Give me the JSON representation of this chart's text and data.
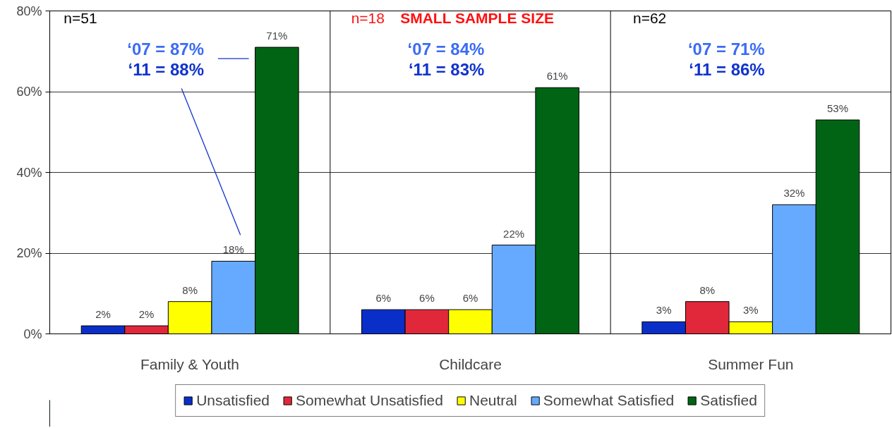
{
  "chart_data": {
    "type": "bar",
    "categories": [
      "Family & Youth",
      "Childcare",
      "Summer Fun"
    ],
    "series": [
      {
        "name": "Unsatisfied",
        "color": "#0a2fc8",
        "values": [
          2,
          6,
          3
        ]
      },
      {
        "name": "Somewhat Unsatisfied",
        "color": "#e0283a",
        "values": [
          2,
          6,
          8
        ]
      },
      {
        "name": "Neutral",
        "color": "#ffff00",
        "values": [
          8,
          6,
          3
        ]
      },
      {
        "name": "Somewhat Satisfied",
        "color": "#66aaff",
        "values": [
          18,
          22,
          32
        ]
      },
      {
        "name": "Satisfied",
        "color": "#006414",
        "values": [
          71,
          61,
          53
        ]
      }
    ],
    "value_labels": [
      [
        "2%",
        "6%",
        "3%"
      ],
      [
        "2%",
        "6%",
        "8%"
      ],
      [
        "8%",
        "6%",
        "3%"
      ],
      [
        "18%",
        "22%",
        "32%"
      ],
      [
        "71%",
        "61%",
        "53%"
      ]
    ],
    "ylim": [
      0,
      80
    ],
    "yticks": [
      {
        "value": 0,
        "label": "0%"
      },
      {
        "value": 20,
        "label": "20%"
      },
      {
        "value": 40,
        "label": "40%"
      },
      {
        "value": 60,
        "label": "60%"
      },
      {
        "value": 80,
        "label": "80%"
      }
    ],
    "grid": "y",
    "legend": "bottom",
    "annotations": [
      "n=51",
      "‘07 = 87%",
      "‘11 = 88%",
      "n=18",
      "SMALL SAMPLE SIZE",
      "‘07 = 84%",
      "‘11 = 83%",
      "n=62",
      "‘07 = 71%",
      "‘11 = 86%"
    ]
  }
}
